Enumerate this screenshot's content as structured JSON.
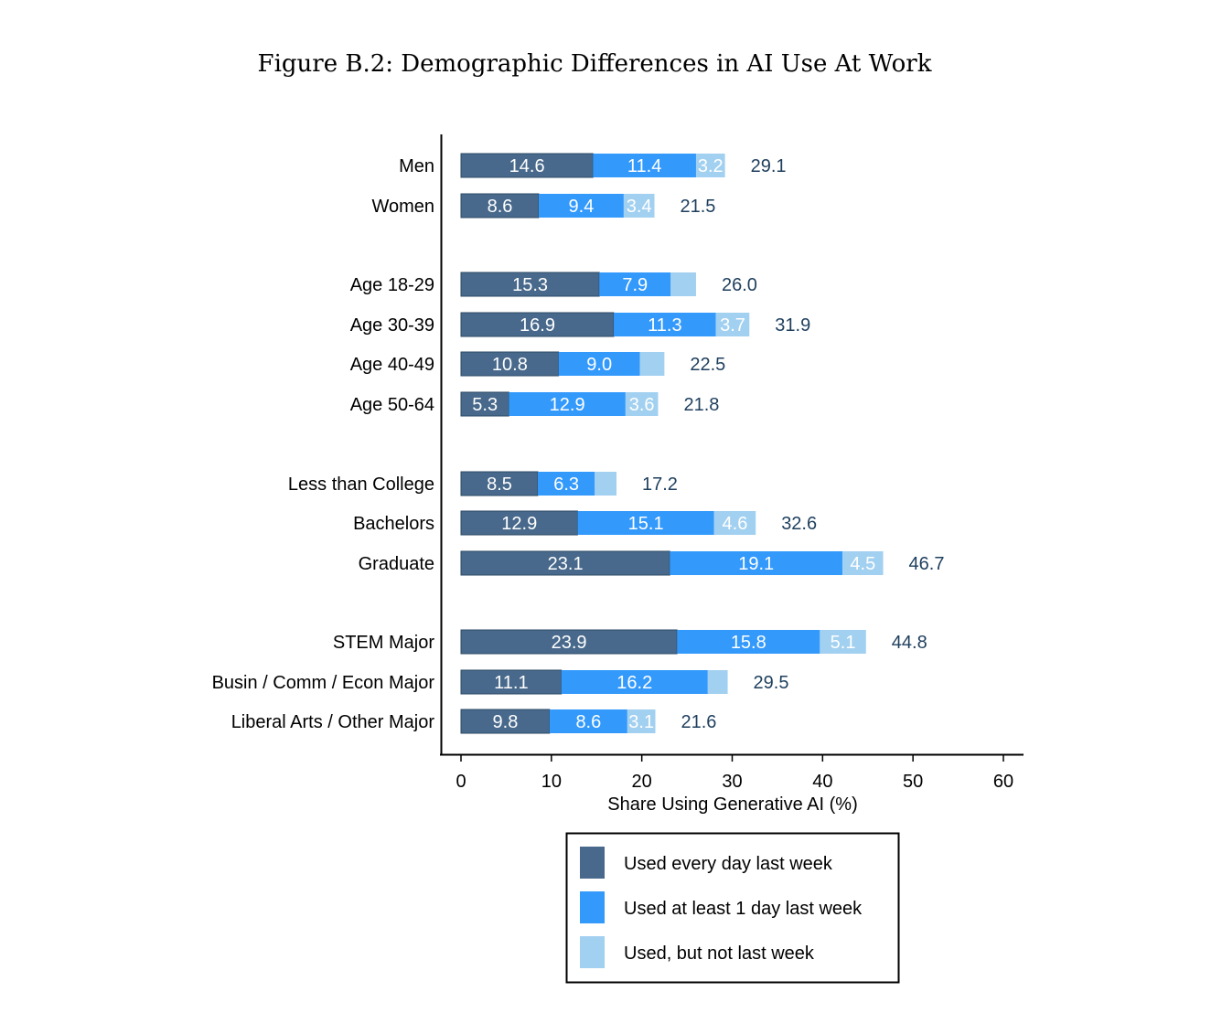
{
  "chart_data": {
    "type": "bar",
    "orientation": "horizontal",
    "stacked": true,
    "title": "Figure B.2: Demographic Differences in AI Use At Work",
    "xlabel": "Share Using Generative AI (%)",
    "ylabel": "",
    "xlim": [
      0,
      60
    ],
    "xticks": [
      "0",
      "10",
      "20",
      "30",
      "40",
      "50",
      "60"
    ],
    "grid": false,
    "legend_position": "bottom",
    "categories": [
      "Men",
      "Women",
      "Age 18-29",
      "Age 30-39",
      "Age 40-49",
      "Age 50-64",
      "Less than College",
      "Bachelors",
      "Graduate",
      "STEM Major",
      "Busin / Comm / Econ Major",
      "Liberal Arts / Other Major"
    ],
    "series": [
      {
        "name": "Used every day last week",
        "color": "#48698b",
        "values": [
          14.6,
          8.6,
          15.3,
          16.9,
          10.8,
          5.3,
          8.5,
          12.9,
          23.1,
          23.9,
          11.1,
          9.8
        ],
        "labeled": [
          true,
          true,
          true,
          true,
          true,
          true,
          true,
          true,
          true,
          true,
          true,
          true
        ]
      },
      {
        "name": "Used at least 1 day last week",
        "color": "#3399fb",
        "values": [
          11.4,
          9.4,
          7.9,
          11.3,
          9.0,
          12.9,
          6.3,
          15.1,
          19.1,
          15.8,
          16.2,
          8.6
        ],
        "labeled": [
          true,
          true,
          true,
          true,
          true,
          true,
          true,
          true,
          true,
          true,
          true,
          true
        ]
      },
      {
        "name": "Used, but not last week",
        "color": "#a2d0f0",
        "values": [
          3.2,
          3.4,
          2.8,
          3.7,
          2.7,
          3.6,
          2.4,
          4.6,
          4.5,
          5.1,
          2.2,
          3.1
        ],
        "labeled": [
          true,
          true,
          false,
          true,
          false,
          true,
          false,
          true,
          true,
          true,
          false,
          true
        ]
      }
    ],
    "totals": [
      "29.1",
      "21.5",
      "26.0",
      "31.9",
      "22.5",
      "21.8",
      "17.2",
      "32.6",
      "46.7",
      "44.8",
      "29.5",
      "21.6"
    ],
    "total_color": "#1e3f5e"
  }
}
